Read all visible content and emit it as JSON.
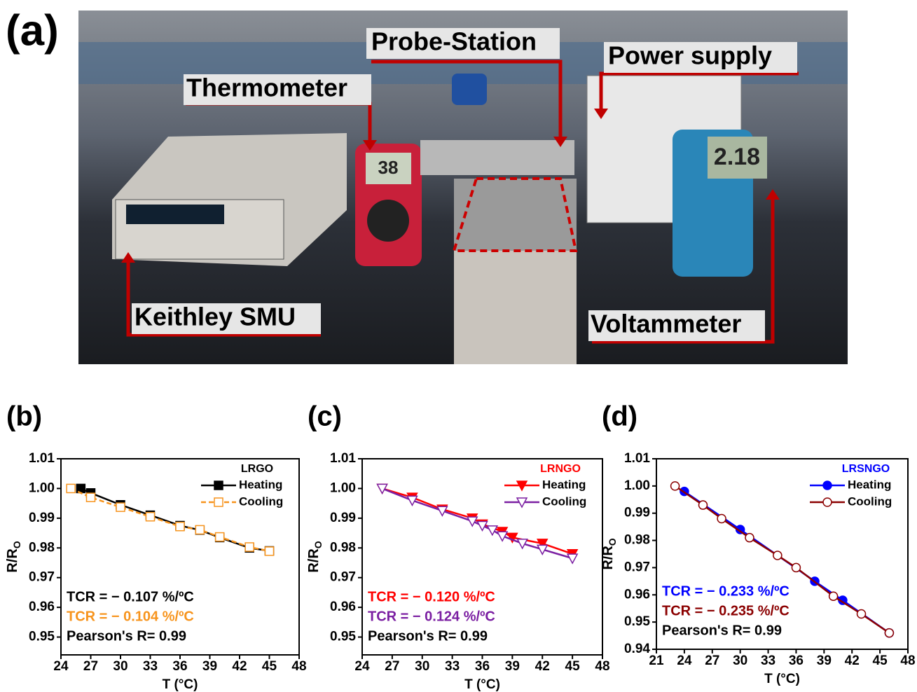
{
  "photo": {
    "label": "(a)",
    "annotations": [
      "Probe-Station",
      "Power supply",
      "Thermometer",
      "Keithley SMU",
      "Voltammeter"
    ],
    "readings": [
      "38",
      "2.18"
    ]
  },
  "chart_data": [
    {
      "type": "line",
      "label": "(b)",
      "xlabel": "T (°C)",
      "ylabel": {
        "main": "R/R",
        "sub": "O"
      },
      "xlim": [
        24,
        48
      ],
      "xticks": [
        24,
        27,
        30,
        33,
        36,
        39,
        42,
        45,
        48
      ],
      "ylim": [
        0.944,
        1.01
      ],
      "yticks": [
        0.95,
        0.96,
        0.97,
        0.98,
        0.99,
        {
          "value": 1,
          "label": "1.00"
        },
        1.01
      ],
      "legend_title": "LRGO",
      "legend_title_color": "#000000",
      "series": [
        {
          "name": "Heating",
          "color": "#000000",
          "marker": "square",
          "filled": true,
          "dashed": false,
          "x": [
            26,
            27,
            30,
            33,
            36,
            38,
            40,
            43,
            45
          ],
          "values": [
            1.0,
            0.9985,
            0.9945,
            0.991,
            0.9875,
            0.986,
            0.9835,
            0.98,
            0.979
          ]
        },
        {
          "name": "Cooling",
          "color": "#f7941d",
          "marker": "square",
          "filled": false,
          "dashed": true,
          "x": [
            25,
            27,
            30,
            33,
            36,
            38,
            40,
            43,
            45
          ],
          "values": [
            1.0,
            0.997,
            0.9937,
            0.9905,
            0.9872,
            0.9861,
            0.9837,
            0.9803,
            0.9789
          ]
        }
      ],
      "annotations": [
        {
          "text": "TCR = − 0.107 %/ºC",
          "color": "#000000"
        },
        {
          "text": "TCR = − 0.104 %/ºC",
          "color": "#f7941d"
        },
        {
          "text": "Pearson's R= 0.99",
          "color": "#000000"
        }
      ]
    },
    {
      "type": "line",
      "label": "(c)",
      "xlabel": "T (°C)",
      "ylabel": {
        "main": "R/R",
        "sub": "O"
      },
      "xlim": [
        24,
        48
      ],
      "xticks": [
        24,
        27,
        30,
        33,
        36,
        39,
        42,
        45,
        48
      ],
      "ylim": [
        0.944,
        1.01
      ],
      "yticks": [
        0.95,
        0.96,
        0.97,
        0.98,
        0.99,
        {
          "value": 1,
          "label": "1.00"
        },
        1.01
      ],
      "legend_title": "LRNGO",
      "legend_title_color": "#ff0000",
      "series": [
        {
          "name": "Heating",
          "color": "#ff0000",
          "marker": "triangle-down",
          "filled": true,
          "dashed": false,
          "x": [
            26,
            29,
            32,
            35,
            36,
            38,
            39,
            42,
            45
          ],
          "values": [
            1.0,
            0.997,
            0.993,
            0.99,
            0.988,
            0.9855,
            0.9835,
            0.9815,
            0.978
          ]
        },
        {
          "name": "Cooling",
          "color": "#7b1fa2",
          "marker": "triangle-down",
          "filled": false,
          "dashed": false,
          "x": [
            26,
            29,
            32,
            35,
            36,
            37,
            38,
            40,
            42,
            45
          ],
          "values": [
            1.0,
            0.996,
            0.9925,
            0.989,
            0.9875,
            0.986,
            0.984,
            0.9815,
            0.9795,
            0.9765
          ]
        }
      ],
      "annotations": [
        {
          "text": "TCR = − 0.120 %/ºC",
          "color": "#ff0000"
        },
        {
          "text": "TCR = − 0.124 %/ºC",
          "color": "#7b1fa2"
        },
        {
          "text": "Pearson's R= 0.99",
          "color": "#000000"
        }
      ]
    },
    {
      "type": "line",
      "label": "(d)",
      "xlabel": "T (°C)",
      "ylabel": {
        "main": "R/R",
        "sub": "O"
      },
      "xlim": [
        21,
        48
      ],
      "xticks": [
        21,
        24,
        27,
        30,
        33,
        36,
        39,
        42,
        45,
        48
      ],
      "ylim": [
        0.94,
        1.01
      ],
      "yticks": [
        0.94,
        0.95,
        0.96,
        0.97,
        0.98,
        0.99,
        {
          "value": 1,
          "label": "1.00"
        },
        1.01
      ],
      "legend_title": "LRSNGO",
      "legend_title_color": "#0000ff",
      "series": [
        {
          "name": "Heating",
          "color": "#0000ff",
          "marker": "circle",
          "filled": true,
          "dashed": false,
          "x": [
            24,
            30,
            38,
            41,
            46
          ],
          "values": [
            0.998,
            0.984,
            0.965,
            0.958,
            0.946
          ]
        },
        {
          "name": "Cooling",
          "color": "#8b0000",
          "marker": "circle",
          "filled": false,
          "dashed": false,
          "x": [
            23,
            26,
            28,
            31,
            34,
            36,
            40,
            43,
            46
          ],
          "values": [
            1.0,
            0.993,
            0.988,
            0.981,
            0.9745,
            0.97,
            0.9595,
            0.953,
            0.946
          ]
        }
      ],
      "annotations": [
        {
          "text": "TCR = − 0.233 %/ºC",
          "color": "#0000ff"
        },
        {
          "text": "TCR = − 0.235 %/ºC",
          "color": "#8b0000"
        },
        {
          "text": "Pearson's R= 0.99",
          "color": "#000000"
        }
      ]
    }
  ]
}
